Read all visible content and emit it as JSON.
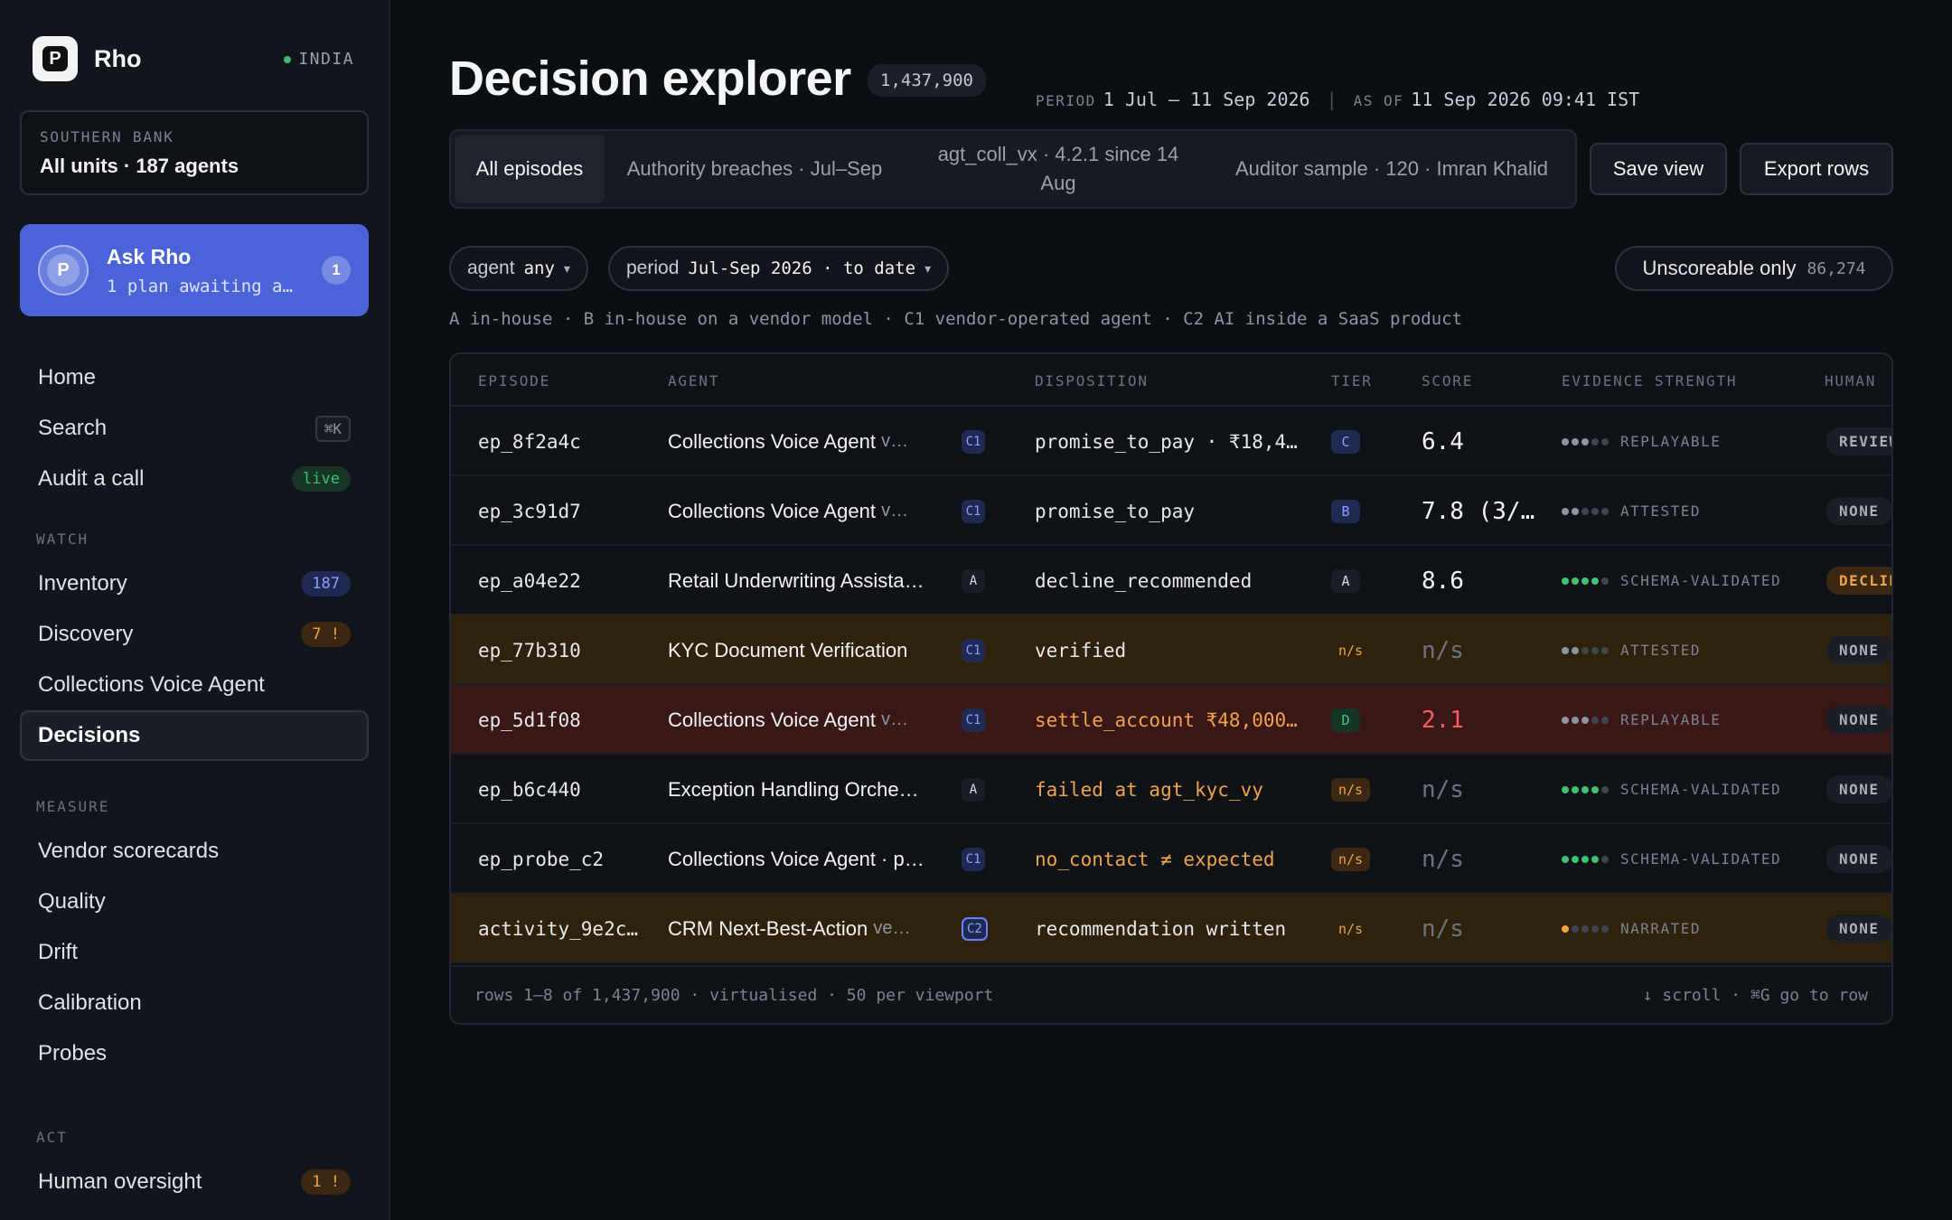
{
  "brand": {
    "name": "Rho",
    "region": "INDIA"
  },
  "unit": {
    "label": "SOUTHERN BANK",
    "value": "All units · 187 agents"
  },
  "ask": {
    "title": "Ask Rho",
    "subtitle": "1 plan awaiting a…",
    "badge": "1"
  },
  "nav": {
    "top": [
      {
        "label": "Home"
      },
      {
        "label": "Search",
        "kbd": "⌘K"
      },
      {
        "label": "Audit a call",
        "pill": "live"
      }
    ],
    "watch_heading": "WATCH",
    "watch": [
      {
        "label": "Inventory",
        "pill": "187"
      },
      {
        "label": "Discovery",
        "pill": "7 !"
      },
      {
        "label": "Collections Voice Agent"
      },
      {
        "label": "Decisions"
      }
    ],
    "measure_heading": "MEASURE",
    "measure": [
      {
        "label": "Vendor scorecards"
      },
      {
        "label": "Quality"
      },
      {
        "label": "Drift"
      },
      {
        "label": "Calibration"
      },
      {
        "label": "Probes"
      }
    ],
    "act_heading": "ACT",
    "act": [
      {
        "label": "Human oversight",
        "pill": "1 !"
      }
    ]
  },
  "header": {
    "title": "Decision explorer",
    "count": "1,437,900",
    "period_key": "PERIOD",
    "period_value": "1 Jul – 11 Sep 2026",
    "asof_key": "AS OF",
    "asof_value": "11 Sep 2026 09:41 IST"
  },
  "tabs": [
    {
      "label": "All episodes"
    },
    {
      "label": "Authority breaches · Jul–Sep"
    },
    {
      "label": "agt_coll_vx · 4.2.1 since 14 Aug"
    },
    {
      "label": "Auditor sample · 120 · Imran Khalid"
    }
  ],
  "actions": {
    "save": "Save view",
    "export": "Export rows"
  },
  "filters": {
    "agent_key": "agent",
    "agent_value": "any",
    "period_key": "period",
    "period_value": "Jul-Sep 2026 · to date",
    "unscoreable_label": "Unscoreable only",
    "unscoreable_count": "86,274"
  },
  "legend": "A in-house · B in-house on a vendor model · C1 vendor-operated agent · C2 AI inside a SaaS product",
  "table": {
    "headers": {
      "episode": "EPISODE",
      "agent": "AGENT",
      "disposition": "DISPOSITION",
      "tier": "TIER",
      "score": "SCORE",
      "evidence": "EVIDENCE STRENGTH",
      "human": "HUMAN"
    },
    "rows": [
      {
        "episode": "ep_8f2a4c",
        "agent": "Collections Voice Agent",
        "ver": "v…",
        "cls": "C1",
        "disposition": "promise_to_pay · ₹18,4…",
        "tier": "C",
        "score": "6.4",
        "evidence": "REPLAYABLE",
        "ev_level": 3,
        "human": "REVIEW"
      },
      {
        "episode": "ep_3c91d7",
        "agent": "Collections Voice Agent",
        "ver": "v…",
        "cls": "C1",
        "disposition": "promise_to_pay",
        "tier": "B",
        "score": "7.8 (3/…",
        "evidence": "ATTESTED",
        "ev_level": 2,
        "human": "NONE"
      },
      {
        "episode": "ep_a04e22",
        "agent": "Retail Underwriting Assista…",
        "ver": "",
        "cls": "A",
        "disposition": "decline_recommended",
        "tier": "A",
        "score": "8.6",
        "evidence": "SCHEMA-VALIDATED",
        "ev_level": 4,
        "human": "DECLINED"
      },
      {
        "episode": "ep_77b310",
        "agent": "KYC Document Verification",
        "ver": "",
        "cls": "C1",
        "disposition": "verified",
        "tier": "n/s",
        "score": "n/s",
        "evidence": "ATTESTED",
        "ev_level": 2,
        "human": "NONE"
      },
      {
        "episode": "ep_5d1f08",
        "agent": "Collections Voice Agent",
        "ver": "v…",
        "cls": "C1",
        "disposition": "settle_account ₹48,000…",
        "tier": "D",
        "score": "2.1",
        "evidence": "REPLAYABLE",
        "ev_level": 3,
        "human": "NONE"
      },
      {
        "episode": "ep_b6c440",
        "agent": "Exception Handling Orche…",
        "ver": "",
        "cls": "A",
        "disposition": "failed at agt_kyc_vy",
        "tier": "n/s",
        "score": "n/s",
        "evidence": "SCHEMA-VALIDATED",
        "ev_level": 4,
        "human": "NONE"
      },
      {
        "episode": "ep_probe_c2",
        "agent": "Collections Voice Agent · p…",
        "ver": "",
        "cls": "C1",
        "disposition": "no_contact ≠ expected",
        "tier": "n/s",
        "score": "n/s",
        "evidence": "SCHEMA-VALIDATED",
        "ev_level": 4,
        "human": "NONE"
      },
      {
        "episode": "activity_9e2c…",
        "agent": "CRM Next-Best-Action",
        "ver": "ve…",
        "cls": "C2",
        "disposition": "recommendation written",
        "tier": "n/s",
        "score": "n/s",
        "evidence": "NARRATED",
        "ev_level": 1,
        "human": "NONE"
      }
    ],
    "footer_left": "rows 1–8 of 1,437,900 · virtualised · 50 per viewport",
    "footer_right": "↓ scroll · ⌘G go to row"
  },
  "colors": {
    "accent": "#4a63d9",
    "warn": "#f0a44a",
    "bad": "#ff5b5b",
    "ok": "#3fc173"
  }
}
